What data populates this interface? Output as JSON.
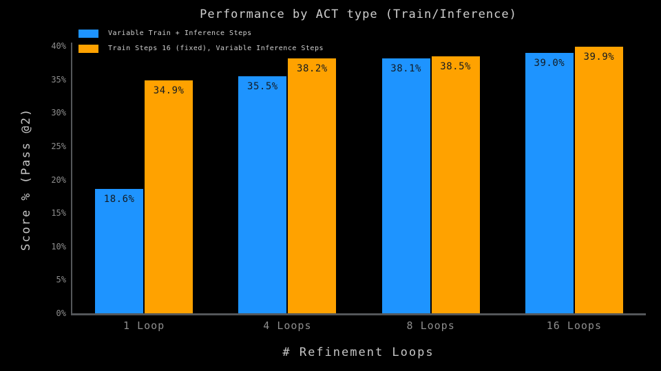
{
  "title": "Performance by ACT type (Train/Inference)",
  "legend": {
    "items": [
      {
        "label": "Variable Train + Inference Steps",
        "color": "#1e94ff"
      },
      {
        "label": "Train Steps 16 (fixed), Variable Inference Steps",
        "color": "#ffa200"
      }
    ]
  },
  "chart_data": {
    "type": "bar",
    "title": "Performance by ACT type (Train/Inference)",
    "categories": [
      "1 Loop",
      "4 Loops",
      "8 Loops",
      "16 Loops"
    ],
    "series": [
      {
        "name": "Variable Train + Inference Steps",
        "color": "#1e94ff",
        "values": [
          18.6,
          35.5,
          38.1,
          39.0
        ]
      },
      {
        "name": "Train Steps 16 (fixed), Variable Inference Steps",
        "color": "#ffa200",
        "values": [
          34.9,
          38.2,
          38.5,
          39.9
        ]
      }
    ],
    "xlabel": "# Refinement Loops",
    "ylabel": "Score % (Pass @2)",
    "ylim": [
      0,
      40
    ],
    "ytick_step": 5,
    "ytick_suffix": "%",
    "value_label_suffix": "%",
    "value_label_decimals": 1,
    "grid": false,
    "legend_position": "top-left",
    "background_color": "#000000",
    "axis_color": "#54575a",
    "tick_label_color": "#8e8e8e",
    "bar_label_color": "#131a22"
  }
}
